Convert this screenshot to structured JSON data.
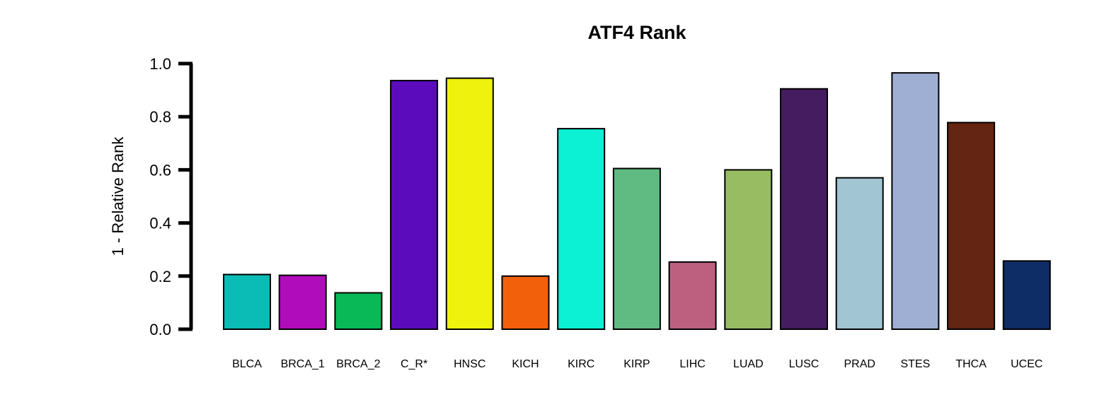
{
  "chart_data": {
    "type": "bar",
    "title": "ATF4 Rank",
    "xlabel": "",
    "ylabel": "1 - Relative Rank",
    "ylim": [
      0,
      1
    ],
    "yticks": [
      "0.0",
      "0.2",
      "0.4",
      "0.6",
      "0.8",
      "1.0"
    ],
    "grid": false,
    "categories": [
      "BLCA",
      "BRCA_1",
      "BRCA_2",
      "C_R*",
      "HNSC",
      "KICH",
      "KIRC",
      "KIRP",
      "LIHC",
      "LUAD",
      "LUSC",
      "PRAD",
      "STES",
      "THCA",
      "UCEC"
    ],
    "values": [
      0.206,
      0.203,
      0.137,
      0.936,
      0.945,
      0.2,
      0.755,
      0.605,
      0.253,
      0.6,
      0.905,
      0.57,
      0.965,
      0.778,
      0.257
    ],
    "colors": [
      "#0BBBB5",
      "#B10CBB",
      "#09B957",
      "#5B0BBB",
      "#EEF20C",
      "#F2600C",
      "#0CF0D3",
      "#60BB82",
      "#BD6080",
      "#97BC62",
      "#451C5F",
      "#A2C5D3",
      "#9FAED3",
      "#642512",
      "#0E2C66"
    ]
  }
}
